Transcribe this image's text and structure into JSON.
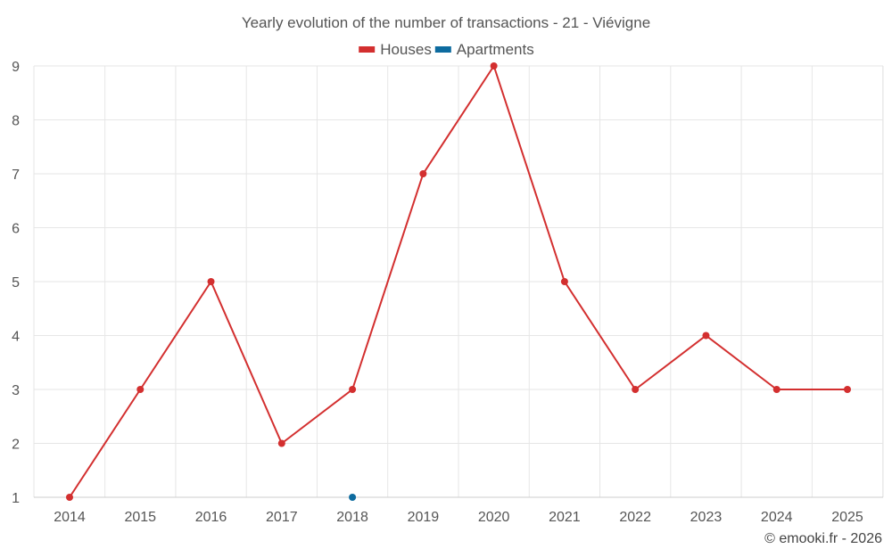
{
  "chart_data": {
    "type": "line",
    "title": "Yearly evolution of the number of transactions - 21 - Viévigne",
    "xlabel": "",
    "ylabel": "",
    "categories": [
      "2014",
      "2015",
      "2016",
      "2017",
      "2018",
      "2019",
      "2020",
      "2021",
      "2022",
      "2023",
      "2024",
      "2025"
    ],
    "ylim": [
      1,
      9
    ],
    "yticks": [
      "1",
      "2",
      "3",
      "4",
      "5",
      "6",
      "7",
      "8",
      "9"
    ],
    "grid": true,
    "legend_position": "top-center",
    "series": [
      {
        "name": "Houses",
        "color": "#d32f2f",
        "values": [
          1,
          3,
          5,
          2,
          3,
          7,
          9,
          5,
          3,
          4,
          3,
          3
        ]
      },
      {
        "name": "Apartments",
        "color": "#0d6b9f",
        "values": [
          null,
          null,
          null,
          null,
          1,
          null,
          null,
          null,
          null,
          null,
          null,
          null
        ]
      }
    ]
  },
  "credit": "© emooki.fr - 2026"
}
